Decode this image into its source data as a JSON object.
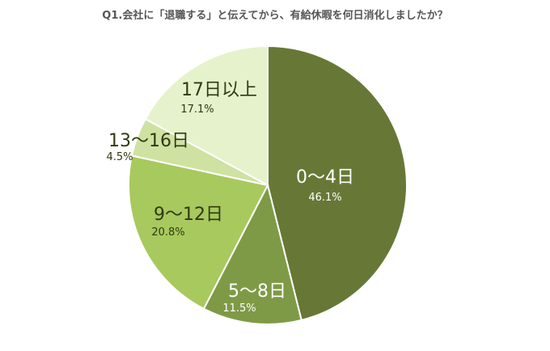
{
  "chart_data": {
    "type": "pie",
    "title": "Q1.会社に「退職する」と伝えてから、有給休暇を何日消化しましたか？",
    "slices": [
      {
        "label": "0〜4日",
        "value": 46.1,
        "value_label": "46.1%",
        "color": "#677836",
        "text_color": "#ffffff"
      },
      {
        "label": "5〜8日",
        "value": 11.5,
        "value_label": "11.5%",
        "color": "#7f9a46",
        "text_color": "#ffffff"
      },
      {
        "label": "9〜12日",
        "value": 20.8,
        "value_label": "20.8%",
        "color": "#a8c95e",
        "text_color": "#2f3a10"
      },
      {
        "label": "13〜16日",
        "value": 4.5,
        "value_label": "4.5%",
        "color": "#cfe2a2",
        "text_color": "#2f3a10"
      },
      {
        "label": "17日以上",
        "value": 17.1,
        "value_label": "17.1%",
        "color": "#e6f2cc",
        "text_color": "#2f3a10"
      }
    ],
    "start_direction": "top",
    "direction": "clockwise",
    "legend": "none"
  }
}
